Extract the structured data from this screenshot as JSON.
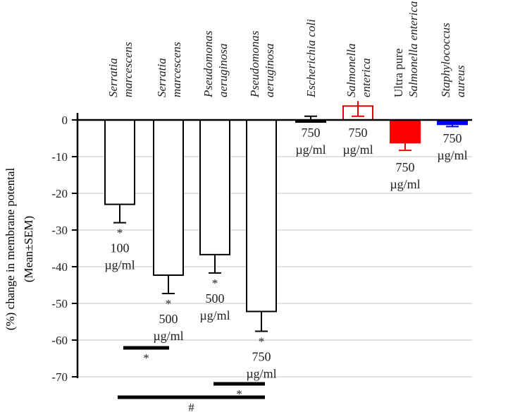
{
  "chart_data": {
    "type": "bar",
    "title": "",
    "xlabel": "",
    "ylabel": [
      "(%) change in membrane potental",
      "(Mean±SEM)"
    ],
    "ylim": [
      -70,
      0
    ],
    "yticks": [
      0,
      -10,
      -20,
      -30,
      -40,
      -50,
      -60,
      -70
    ],
    "grid": true,
    "categories": [
      [
        "Serratia",
        "marcescens"
      ],
      [
        "Serratia",
        "marcescens"
      ],
      [
        "Pseudomonas",
        "aeruginosa"
      ],
      [
        "Pseudomonas",
        "aeruginosa"
      ],
      [
        "Escherichia coli"
      ],
      [
        "Salmonella",
        "enterica"
      ],
      [
        "Ultra pure",
        "Salmonella enterica"
      ],
      [
        "Staphylococcus",
        "aureus"
      ]
    ],
    "values": [
      -23,
      -42.3,
      -36.7,
      -52.2,
      -0.5,
      3.8,
      -6.2,
      -1.2
    ],
    "errors": [
      5,
      5,
      5,
      5.4,
      1.5,
      2.8,
      2.1,
      0.6
    ],
    "colors": [
      "#ffffff",
      "#ffffff",
      "#ffffff",
      "#ffffff",
      "#000000",
      "#ffffff",
      "#ff0000",
      "#0000ff"
    ],
    "edge_colors": [
      "#000000",
      "#000000",
      "#000000",
      "#000000",
      "#000000",
      "#e00000",
      "#ff0000",
      "#0000ff"
    ],
    "bar_annotations": [
      {
        "star": "*",
        "dose": "100",
        "unit": "µg/ml"
      },
      {
        "star": "*",
        "dose": "500",
        "unit": "µg/ml"
      },
      {
        "star": "*",
        "dose": "500",
        "unit": "µg/ml"
      },
      {
        "star": "*",
        "dose": "750",
        "unit": "µg/ml"
      },
      {
        "star": "",
        "dose": "750",
        "unit": "µg/ml"
      },
      {
        "star": "",
        "dose": "750",
        "unit": "µg/ml"
      },
      {
        "star": "",
        "dose": "750",
        "unit": "µg/ml"
      },
      {
        "star": "",
        "dose": "750",
        "unit": "µg/ml"
      }
    ],
    "significance": [
      {
        "from": 1,
        "to": 2,
        "symbol": "*"
      },
      {
        "from": 3,
        "to": 4,
        "symbol": "*"
      },
      {
        "from": 1,
        "to": 4,
        "symbol": "#"
      }
    ]
  }
}
